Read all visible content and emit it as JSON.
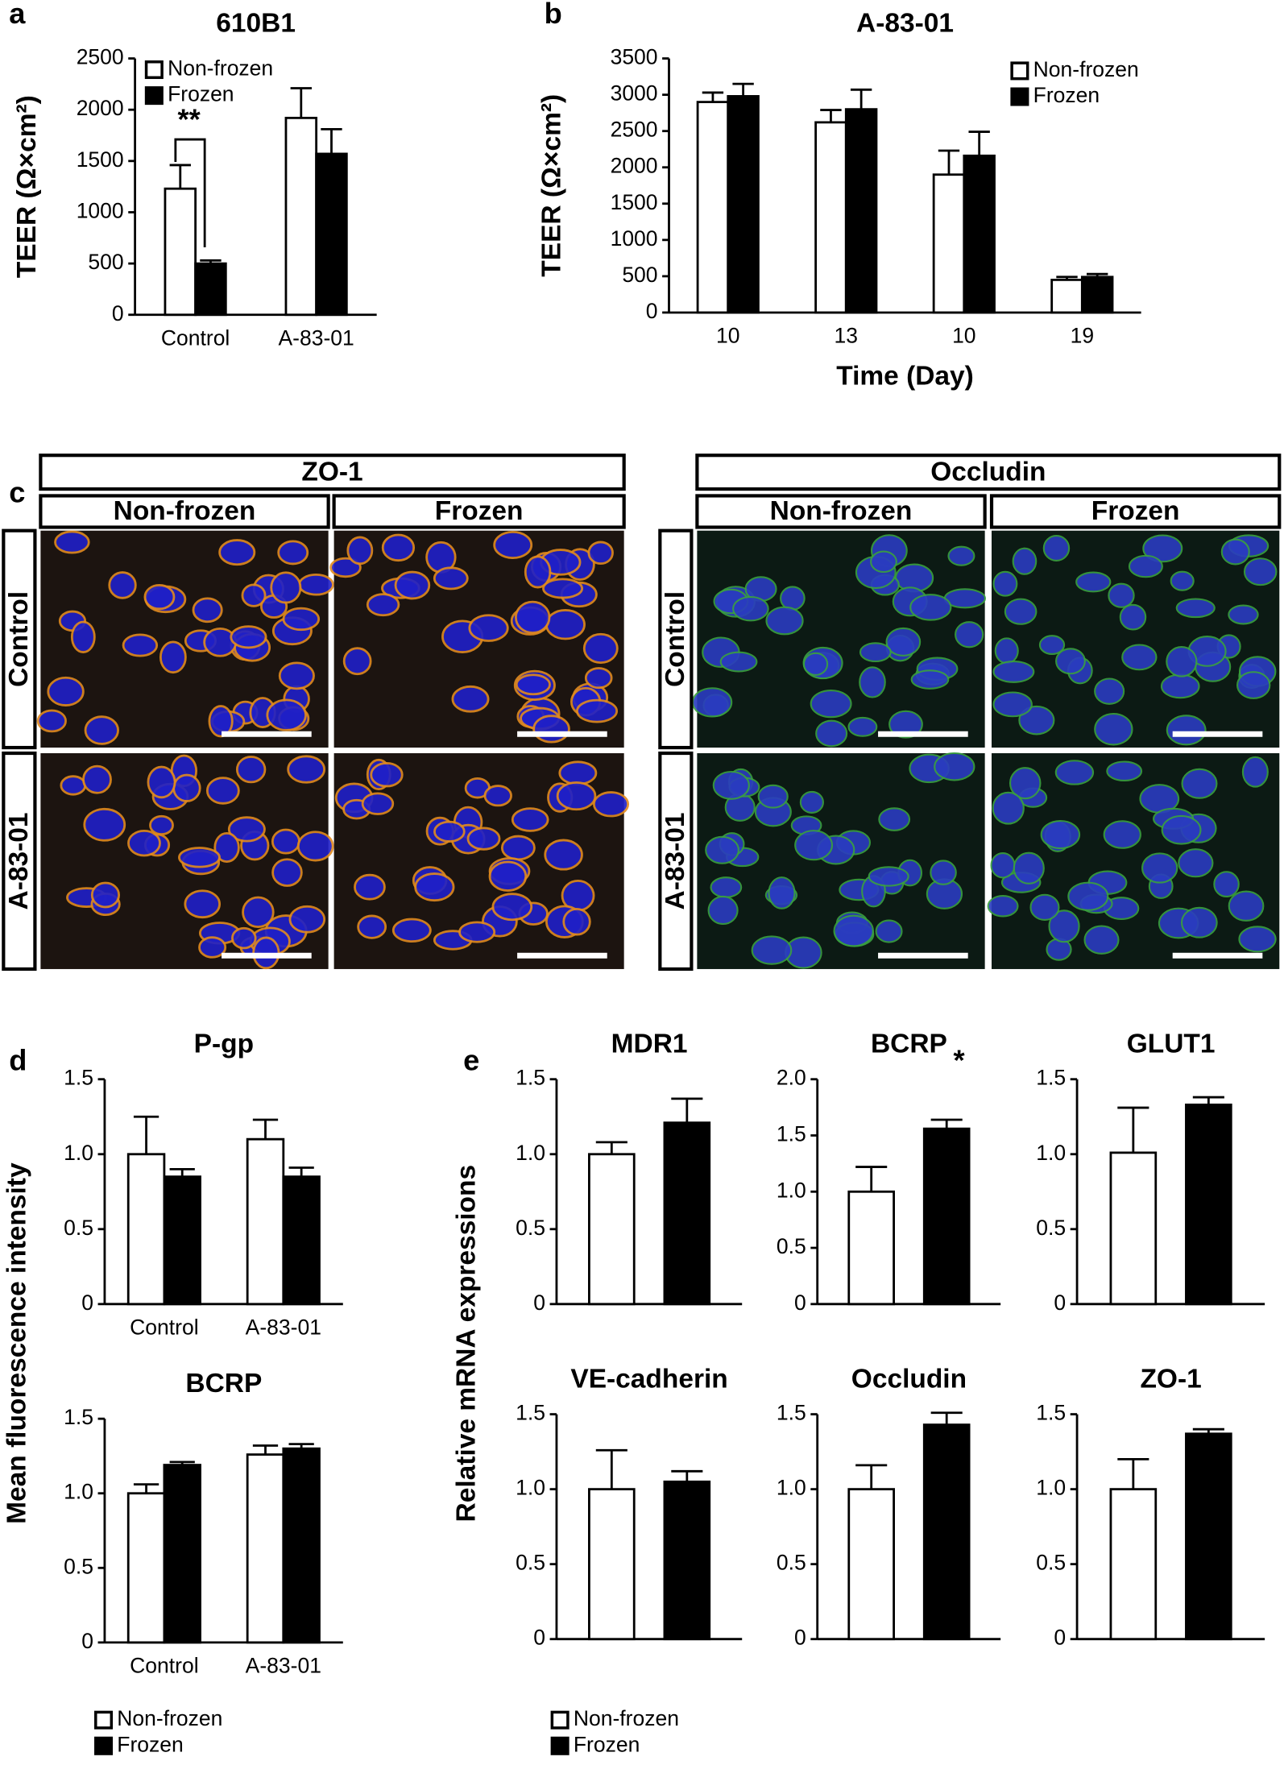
{
  "panel_labels": [
    "a",
    "b",
    "c",
    "d",
    "e"
  ],
  "panel_c": {
    "groups": [
      {
        "title": "ZO-1",
        "columns": [
          "Non-frozen",
          "Frozen"
        ]
      },
      {
        "title": "Occludin",
        "columns": [
          "Non-frozen",
          "Frozen"
        ]
      }
    ],
    "rows": [
      "Control",
      "A-83-01"
    ]
  },
  "chart_data": [
    {
      "type": "bar",
      "title": "610B1",
      "ylabel": "TEER (Ω×cm²)",
      "categories": [
        "Control",
        "A-83-01"
      ],
      "series": [
        {
          "name": "Non-frozen",
          "color": "#ffffff",
          "values": [
            1230,
            1920
          ],
          "errors": [
            230,
            290
          ]
        },
        {
          "name": "Frozen",
          "color": "#000000",
          "values": [
            500,
            1570
          ],
          "errors": [
            30,
            240
          ]
        }
      ],
      "annotations": [
        {
          "text": "**"
        }
      ],
      "ylim": [
        0,
        2500
      ],
      "yticks": [
        0,
        500,
        1000,
        1500,
        2000,
        2500
      ]
    },
    {
      "type": "bar",
      "title": "A-83-01",
      "ylabel": "TEER (Ω×cm²)",
      "xlabel": "Time (Day)",
      "categories": [
        "10",
        "13",
        "10",
        "19"
      ],
      "series": [
        {
          "name": "Non-frozen",
          "color": "#ffffff",
          "values": [
            2900,
            2620,
            1900,
            450
          ],
          "errors": [
            130,
            170,
            330,
            40
          ]
        },
        {
          "name": "Frozen",
          "color": "#000000",
          "values": [
            2980,
            2800,
            2160,
            490
          ],
          "errors": [
            170,
            270,
            330,
            40
          ]
        }
      ],
      "ylim": [
        0,
        3500
      ],
      "yticks": [
        0,
        500,
        1000,
        1500,
        2000,
        2500,
        3000,
        3500
      ]
    },
    {
      "type": "bar",
      "title": "P-gp",
      "ylabel": "Mean fluorescence intensity",
      "categories": [
        "Control",
        "A-83-01"
      ],
      "series": [
        {
          "name": "Non-frozen",
          "color": "#ffffff",
          "values": [
            1.0,
            1.1
          ],
          "errors": [
            0.25,
            0.13
          ]
        },
        {
          "name": "Frozen",
          "color": "#000000",
          "values": [
            0.85,
            0.85
          ],
          "errors": [
            0.05,
            0.06
          ]
        }
      ],
      "ylim": [
        0,
        1.5
      ],
      "yticks": [
        0,
        0.5,
        {
          "value": 1,
          "label": "1.0"
        },
        1.5
      ]
    },
    {
      "type": "bar",
      "title": "BCRP",
      "categories": [
        "Control",
        "A-83-01"
      ],
      "series": [
        {
          "color": "#ffffff",
          "values": [
            1.0,
            1.26
          ],
          "errors": [
            0.06,
            0.06
          ]
        },
        {
          "color": "#000000",
          "values": [
            1.19,
            1.3
          ],
          "errors": [
            0.02,
            0.03
          ]
        }
      ],
      "ylim": [
        0,
        1.5
      ],
      "yticks": [
        0,
        0.5,
        {
          "value": 1,
          "label": "1.0"
        },
        1.5
      ]
    },
    {
      "type": "bar",
      "title": "MDR1",
      "ylabel": "Relative mRNA expressions",
      "series": [
        {
          "name": "Non-frozen",
          "color": "#ffffff",
          "values": [
            1.0
          ],
          "errors": [
            0.08
          ]
        },
        {
          "name": "Frozen",
          "color": "#000000",
          "values": [
            1.21
          ],
          "errors": [
            0.16
          ]
        }
      ],
      "ylim": [
        0,
        1.5
      ],
      "yticks": [
        0,
        0.5,
        {
          "value": 1,
          "label": "1.0"
        },
        1.5
      ]
    },
    {
      "type": "bar",
      "title": "BCRP",
      "series": [
        {
          "color": "#ffffff",
          "values": [
            1.0
          ],
          "errors": [
            0.22
          ]
        },
        {
          "color": "#000000",
          "values": [
            1.56
          ],
          "errors": [
            0.08
          ]
        }
      ],
      "annotations": [
        {
          "text": "*"
        }
      ],
      "ylim": [
        0,
        2
      ],
      "yticks": [
        0,
        0.5,
        {
          "value": 1,
          "label": "1.0"
        },
        1.5,
        {
          "value": 2,
          "label": "2.0"
        }
      ]
    },
    {
      "type": "bar",
      "title": "GLUT1",
      "series": [
        {
          "color": "#ffffff",
          "values": [
            1.01
          ],
          "errors": [
            0.3
          ]
        },
        {
          "color": "#000000",
          "values": [
            1.33
          ],
          "errors": [
            0.05
          ]
        }
      ],
      "ylim": [
        0,
        1.5
      ],
      "yticks": [
        0,
        0.5,
        {
          "value": 1,
          "label": "1.0"
        },
        1.5
      ]
    },
    {
      "type": "bar",
      "title": "VE-cadherin",
      "series": [
        {
          "color": "#ffffff",
          "values": [
            1.0
          ],
          "errors": [
            0.26
          ]
        },
        {
          "color": "#000000",
          "values": [
            1.05
          ],
          "errors": [
            0.07
          ]
        }
      ],
      "ylim": [
        0,
        1.5
      ],
      "yticks": [
        0,
        0.5,
        {
          "value": 1,
          "label": "1.0"
        },
        1.5
      ]
    },
    {
      "type": "bar",
      "title": "Occludin",
      "series": [
        {
          "color": "#ffffff",
          "values": [
            1.0
          ],
          "errors": [
            0.16
          ]
        },
        {
          "color": "#000000",
          "values": [
            1.43
          ],
          "errors": [
            0.08
          ]
        }
      ],
      "ylim": [
        0,
        1.5
      ],
      "yticks": [
        0,
        0.5,
        {
          "value": 1,
          "label": "1.0"
        },
        1.5
      ]
    },
    {
      "type": "bar",
      "title": "ZO-1",
      "series": [
        {
          "color": "#ffffff",
          "values": [
            1.0
          ],
          "errors": [
            0.2
          ]
        },
        {
          "color": "#000000",
          "values": [
            1.37
          ],
          "errors": [
            0.03
          ]
        }
      ],
      "ylim": [
        0,
        1.5
      ],
      "yticks": [
        0,
        0.5,
        {
          "value": 1,
          "label": "1.0"
        },
        1.5
      ]
    }
  ]
}
